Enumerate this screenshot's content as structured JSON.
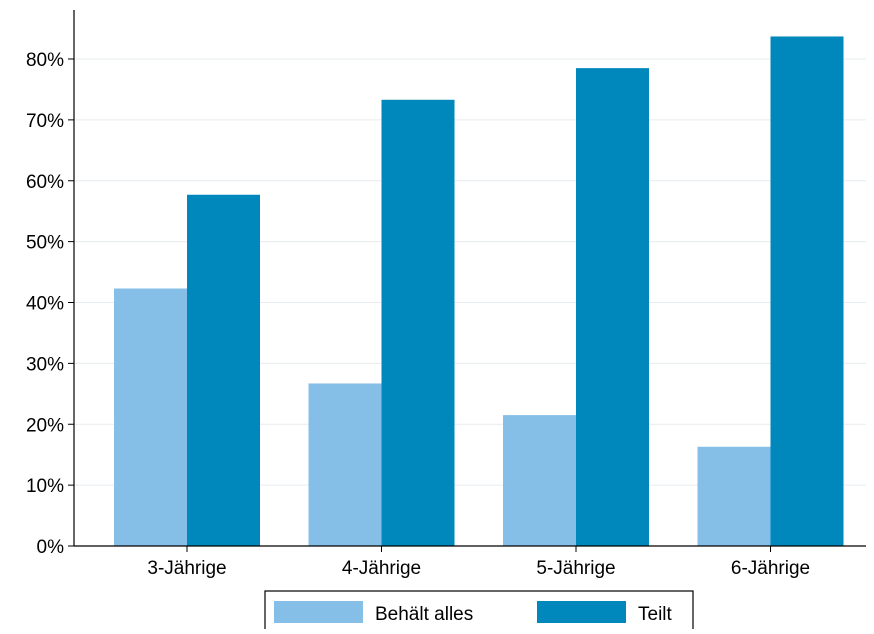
{
  "chart_data": {
    "type": "bar",
    "title": "",
    "xlabel": "",
    "ylabel": "",
    "categories": [
      "3-Jährige",
      "4-Jährige",
      "5-Jährige",
      "6-Jährige"
    ],
    "series": [
      {
        "name": "Behält alles",
        "values": [
          42.3,
          26.7,
          21.5,
          16.3
        ],
        "color": "#85bfe8"
      },
      {
        "name": "Teilt",
        "values": [
          57.7,
          73.3,
          78.5,
          83.7
        ],
        "color": "#0087bc"
      }
    ],
    "ylim": [
      0,
      88
    ],
    "yticks": [
      0,
      10,
      20,
      30,
      40,
      50,
      60,
      70,
      80
    ],
    "ytick_labels": [
      "0%",
      "10%",
      "20%",
      "30%",
      "40%",
      "50%",
      "60%",
      "70%",
      "80%"
    ],
    "grid": true,
    "legend_position": "bottom"
  }
}
